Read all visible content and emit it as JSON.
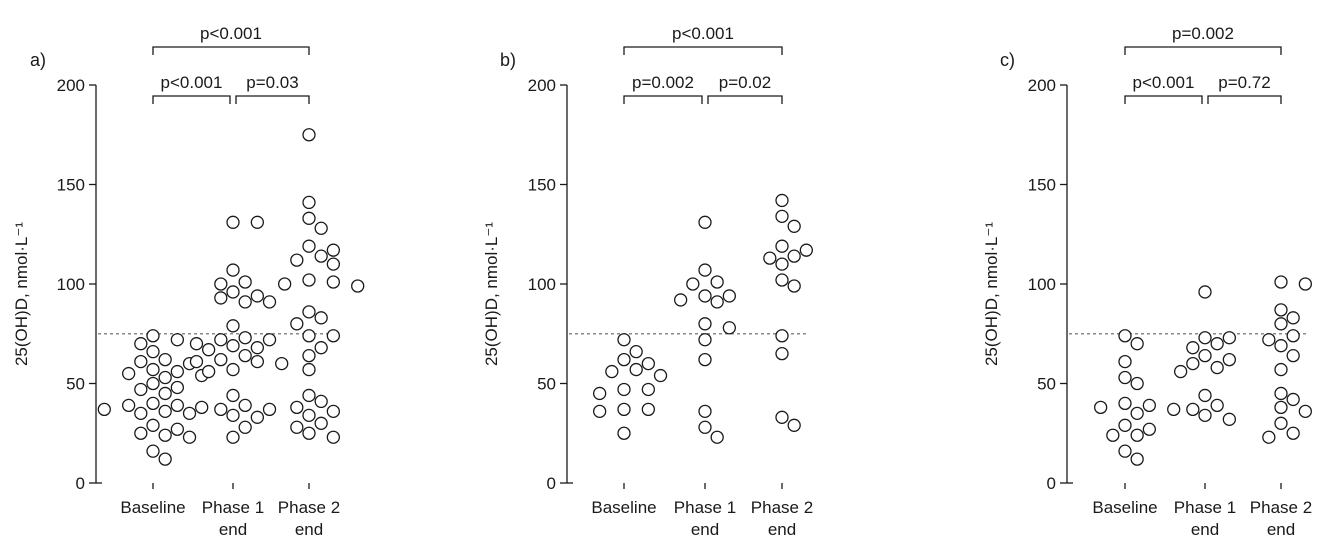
{
  "chart_data": [
    {
      "type": "scatter",
      "panel_label": "a)",
      "ylabel": "25(OH)D, nmol·L⁻¹",
      "ylim": [
        0,
        200
      ],
      "yticks": [
        0,
        50,
        100,
        150,
        200
      ],
      "categories": [
        "Baseline",
        "Phase 1\nend",
        "Phase 2\nend"
      ],
      "reference_line": 75,
      "brackets": [
        {
          "from": 0,
          "to": 1,
          "level": 0,
          "label": "p<0.001"
        },
        {
          "from": 1,
          "to": 2,
          "level": 0,
          "label": "p=0.03"
        },
        {
          "from": 0,
          "to": 2,
          "level": 1,
          "label": "p<0.001"
        }
      ],
      "points": [
        {
          "x": "Baseline",
          "y": 72
        },
        {
          "x": "Baseline",
          "y": 66
        },
        {
          "x": "Baseline",
          "y": 74
        },
        {
          "x": "Baseline",
          "y": 70
        },
        {
          "x": "Baseline",
          "y": 62
        },
        {
          "x": "Baseline",
          "y": 61
        },
        {
          "x": "Baseline",
          "y": 60
        },
        {
          "x": "Baseline",
          "y": 57
        },
        {
          "x": "Baseline",
          "y": 56
        },
        {
          "x": "Baseline",
          "y": 55
        },
        {
          "x": "Baseline",
          "y": 54
        },
        {
          "x": "Baseline",
          "y": 53
        },
        {
          "x": "Baseline",
          "y": 50
        },
        {
          "x": "Baseline",
          "y": 48
        },
        {
          "x": "Baseline",
          "y": 47
        },
        {
          "x": "Baseline",
          "y": 45
        },
        {
          "x": "Baseline",
          "y": 40
        },
        {
          "x": "Baseline",
          "y": 39
        },
        {
          "x": "Baseline",
          "y": 39
        },
        {
          "x": "Baseline",
          "y": 38
        },
        {
          "x": "Baseline",
          "y": 37
        },
        {
          "x": "Baseline",
          "y": 36
        },
        {
          "x": "Baseline",
          "y": 35
        },
        {
          "x": "Baseline",
          "y": 35
        },
        {
          "x": "Baseline",
          "y": 29
        },
        {
          "x": "Baseline",
          "y": 27
        },
        {
          "x": "Baseline",
          "y": 25
        },
        {
          "x": "Baseline",
          "y": 24
        },
        {
          "x": "Baseline",
          "y": 23
        },
        {
          "x": "Baseline",
          "y": 16
        },
        {
          "x": "Baseline",
          "y": 12
        },
        {
          "x": "Phase 1 end",
          "y": 131
        },
        {
          "x": "Phase 1 end",
          "y": 131
        },
        {
          "x": "Phase 1 end",
          "y": 107
        },
        {
          "x": "Phase 1 end",
          "y": 101
        },
        {
          "x": "Phase 1 end",
          "y": 100
        },
        {
          "x": "Phase 1 end",
          "y": 96
        },
        {
          "x": "Phase 1 end",
          "y": 94
        },
        {
          "x": "Phase 1 end",
          "y": 93
        },
        {
          "x": "Phase 1 end",
          "y": 91
        },
        {
          "x": "Phase 1 end",
          "y": 91
        },
        {
          "x": "Phase 1 end",
          "y": 79
        },
        {
          "x": "Phase 1 end",
          "y": 73
        },
        {
          "x": "Phase 1 end",
          "y": 72
        },
        {
          "x": "Phase 1 end",
          "y": 72
        },
        {
          "x": "Phase 1 end",
          "y": 70
        },
        {
          "x": "Phase 1 end",
          "y": 69
        },
        {
          "x": "Phase 1 end",
          "y": 68
        },
        {
          "x": "Phase 1 end",
          "y": 67
        },
        {
          "x": "Phase 1 end",
          "y": 64
        },
        {
          "x": "Phase 1 end",
          "y": 62
        },
        {
          "x": "Phase 1 end",
          "y": 61
        },
        {
          "x": "Phase 1 end",
          "y": 61
        },
        {
          "x": "Phase 1 end",
          "y": 60
        },
        {
          "x": "Phase 1 end",
          "y": 57
        },
        {
          "x": "Phase 1 end",
          "y": 56
        },
        {
          "x": "Phase 1 end",
          "y": 44
        },
        {
          "x": "Phase 1 end",
          "y": 39
        },
        {
          "x": "Phase 1 end",
          "y": 37
        },
        {
          "x": "Phase 1 end",
          "y": 37
        },
        {
          "x": "Phase 1 end",
          "y": 34
        },
        {
          "x": "Phase 1 end",
          "y": 33
        },
        {
          "x": "Phase 1 end",
          "y": 28
        },
        {
          "x": "Phase 1 end",
          "y": 23
        },
        {
          "x": "Phase 2 end",
          "y": 175
        },
        {
          "x": "Phase 2 end",
          "y": 141
        },
        {
          "x": "Phase 2 end",
          "y": 133
        },
        {
          "x": "Phase 2 end",
          "y": 128
        },
        {
          "x": "Phase 2 end",
          "y": 119
        },
        {
          "x": "Phase 2 end",
          "y": 117
        },
        {
          "x": "Phase 2 end",
          "y": 114
        },
        {
          "x": "Phase 2 end",
          "y": 112
        },
        {
          "x": "Phase 2 end",
          "y": 110
        },
        {
          "x": "Phase 2 end",
          "y": 102
        },
        {
          "x": "Phase 2 end",
          "y": 101
        },
        {
          "x": "Phase 2 end",
          "y": 100
        },
        {
          "x": "Phase 2 end",
          "y": 99
        },
        {
          "x": "Phase 2 end",
          "y": 86
        },
        {
          "x": "Phase 2 end",
          "y": 83
        },
        {
          "x": "Phase 2 end",
          "y": 80
        },
        {
          "x": "Phase 2 end",
          "y": 74
        },
        {
          "x": "Phase 2 end",
          "y": 74
        },
        {
          "x": "Phase 2 end",
          "y": 68
        },
        {
          "x": "Phase 2 end",
          "y": 64
        },
        {
          "x": "Phase 2 end",
          "y": 57
        },
        {
          "x": "Phase 2 end",
          "y": 44
        },
        {
          "x": "Phase 2 end",
          "y": 41
        },
        {
          "x": "Phase 2 end",
          "y": 38
        },
        {
          "x": "Phase 2 end",
          "y": 36
        },
        {
          "x": "Phase 2 end",
          "y": 34
        },
        {
          "x": "Phase 2 end",
          "y": 30
        },
        {
          "x": "Phase 2 end",
          "y": 28
        },
        {
          "x": "Phase 2 end",
          "y": 25
        },
        {
          "x": "Phase 2 end",
          "y": 23
        }
      ]
    },
    {
      "type": "scatter",
      "panel_label": "b)",
      "ylabel": "25(OH)D, nmol·L⁻¹",
      "ylim": [
        0,
        200
      ],
      "yticks": [
        0,
        50,
        100,
        150,
        200
      ],
      "categories": [
        "Baseline",
        "Phase 1\nend",
        "Phase 2\nend"
      ],
      "reference_line": 75,
      "brackets": [
        {
          "from": 0,
          "to": 1,
          "level": 0,
          "label": "p=0.002"
        },
        {
          "from": 1,
          "to": 2,
          "level": 0,
          "label": "p=0.02"
        },
        {
          "from": 0,
          "to": 2,
          "level": 1,
          "label": "p<0.001"
        }
      ],
      "points": [
        {
          "x": "Baseline",
          "y": 72
        },
        {
          "x": "Baseline",
          "y": 66
        },
        {
          "x": "Baseline",
          "y": 62
        },
        {
          "x": "Baseline",
          "y": 60
        },
        {
          "x": "Baseline",
          "y": 57
        },
        {
          "x": "Baseline",
          "y": 56
        },
        {
          "x": "Baseline",
          "y": 54
        },
        {
          "x": "Baseline",
          "y": 47
        },
        {
          "x": "Baseline",
          "y": 47
        },
        {
          "x": "Baseline",
          "y": 45
        },
        {
          "x": "Baseline",
          "y": 37
        },
        {
          "x": "Baseline",
          "y": 37
        },
        {
          "x": "Baseline",
          "y": 36
        },
        {
          "x": "Baseline",
          "y": 25
        },
        {
          "x": "Phase 1 end",
          "y": 131
        },
        {
          "x": "Phase 1 end",
          "y": 107
        },
        {
          "x": "Phase 1 end",
          "y": 101
        },
        {
          "x": "Phase 1 end",
          "y": 100
        },
        {
          "x": "Phase 1 end",
          "y": 94
        },
        {
          "x": "Phase 1 end",
          "y": 94
        },
        {
          "x": "Phase 1 end",
          "y": 92
        },
        {
          "x": "Phase 1 end",
          "y": 91
        },
        {
          "x": "Phase 1 end",
          "y": 80
        },
        {
          "x": "Phase 1 end",
          "y": 78
        },
        {
          "x": "Phase 1 end",
          "y": 72
        },
        {
          "x": "Phase 1 end",
          "y": 62
        },
        {
          "x": "Phase 1 end",
          "y": 36
        },
        {
          "x": "Phase 1 end",
          "y": 28
        },
        {
          "x": "Phase 1 end",
          "y": 23
        },
        {
          "x": "Phase 2 end",
          "y": 142
        },
        {
          "x": "Phase 2 end",
          "y": 134
        },
        {
          "x": "Phase 2 end",
          "y": 129
        },
        {
          "x": "Phase 2 end",
          "y": 119
        },
        {
          "x": "Phase 2 end",
          "y": 117
        },
        {
          "x": "Phase 2 end",
          "y": 114
        },
        {
          "x": "Phase 2 end",
          "y": 113
        },
        {
          "x": "Phase 2 end",
          "y": 110
        },
        {
          "x": "Phase 2 end",
          "y": 102
        },
        {
          "x": "Phase 2 end",
          "y": 99
        },
        {
          "x": "Phase 2 end",
          "y": 74
        },
        {
          "x": "Phase 2 end",
          "y": 65
        },
        {
          "x": "Phase 2 end",
          "y": 33
        },
        {
          "x": "Phase 2 end",
          "y": 29
        }
      ]
    },
    {
      "type": "scatter",
      "panel_label": "c)",
      "ylabel": "25(OH)D, nmol·L⁻¹",
      "ylim": [
        0,
        200
      ],
      "yticks": [
        0,
        50,
        100,
        150,
        200
      ],
      "categories": [
        "Baseline",
        "Phase 1\nend",
        "Phase 2\nend"
      ],
      "reference_line": 75,
      "brackets": [
        {
          "from": 0,
          "to": 1,
          "level": 0,
          "label": "p<0.001"
        },
        {
          "from": 1,
          "to": 2,
          "level": 0,
          "label": "p=0.72"
        },
        {
          "from": 0,
          "to": 2,
          "level": 1,
          "label": "p=0.002"
        }
      ],
      "points": [
        {
          "x": "Baseline",
          "y": 74
        },
        {
          "x": "Baseline",
          "y": 70
        },
        {
          "x": "Baseline",
          "y": 61
        },
        {
          "x": "Baseline",
          "y": 53
        },
        {
          "x": "Baseline",
          "y": 50
        },
        {
          "x": "Baseline",
          "y": 40
        },
        {
          "x": "Baseline",
          "y": 39
        },
        {
          "x": "Baseline",
          "y": 38
        },
        {
          "x": "Baseline",
          "y": 37
        },
        {
          "x": "Baseline",
          "y": 35
        },
        {
          "x": "Baseline",
          "y": 29
        },
        {
          "x": "Baseline",
          "y": 27
        },
        {
          "x": "Baseline",
          "y": 24
        },
        {
          "x": "Baseline",
          "y": 24
        },
        {
          "x": "Baseline",
          "y": 16
        },
        {
          "x": "Baseline",
          "y": 12
        },
        {
          "x": "Phase 1 end",
          "y": 96
        },
        {
          "x": "Phase 1 end",
          "y": 73
        },
        {
          "x": "Phase 1 end",
          "y": 73
        },
        {
          "x": "Phase 1 end",
          "y": 70
        },
        {
          "x": "Phase 1 end",
          "y": 68
        },
        {
          "x": "Phase 1 end",
          "y": 64
        },
        {
          "x": "Phase 1 end",
          "y": 62
        },
        {
          "x": "Phase 1 end",
          "y": 60
        },
        {
          "x": "Phase 1 end",
          "y": 58
        },
        {
          "x": "Phase 1 end",
          "y": 56
        },
        {
          "x": "Phase 1 end",
          "y": 44
        },
        {
          "x": "Phase 1 end",
          "y": 39
        },
        {
          "x": "Phase 1 end",
          "y": 37
        },
        {
          "x": "Phase 1 end",
          "y": 34
        },
        {
          "x": "Phase 1 end",
          "y": 32
        },
        {
          "x": "Phase 2 end",
          "y": 101
        },
        {
          "x": "Phase 2 end",
          "y": 100
        },
        {
          "x": "Phase 2 end",
          "y": 87
        },
        {
          "x": "Phase 2 end",
          "y": 83
        },
        {
          "x": "Phase 2 end",
          "y": 80
        },
        {
          "x": "Phase 2 end",
          "y": 74
        },
        {
          "x": "Phase 2 end",
          "y": 72
        },
        {
          "x": "Phase 2 end",
          "y": 69
        },
        {
          "x": "Phase 2 end",
          "y": 64
        },
        {
          "x": "Phase 2 end",
          "y": 57
        },
        {
          "x": "Phase 2 end",
          "y": 45
        },
        {
          "x": "Phase 2 end",
          "y": 42
        },
        {
          "x": "Phase 2 end",
          "y": 38
        },
        {
          "x": "Phase 2 end",
          "y": 36
        },
        {
          "x": "Phase 2 end",
          "y": 30
        },
        {
          "x": "Phase 2 end",
          "y": 25
        },
        {
          "x": "Phase 2 end",
          "y": 23
        }
      ]
    }
  ]
}
